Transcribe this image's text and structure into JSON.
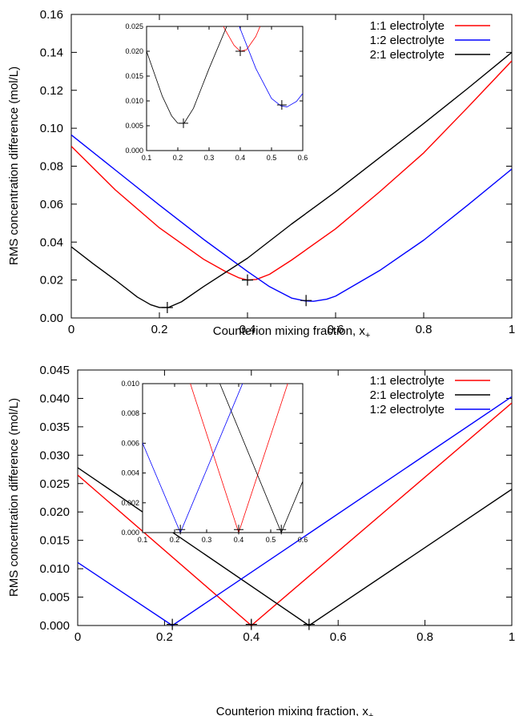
{
  "chart_data": [
    {
      "type": "line",
      "xlabel": "Counterion mixing fraction, x",
      "xlabel_subscript": "+",
      "ylabel": "RMS concentration difference (mol/L)",
      "xlim": [
        0,
        1
      ],
      "ylim": [
        0,
        0.16
      ],
      "x_ticks": [
        0,
        0.2,
        0.4,
        0.6,
        0.8,
        1
      ],
      "x_tick_labels": [
        "0",
        "0.2",
        "0.4",
        "0.6",
        "0.8",
        "1"
      ],
      "y_ticks": [
        0,
        0.02,
        0.04,
        0.06,
        0.08,
        0.1,
        0.12,
        0.14,
        0.16
      ],
      "y_tick_labels": [
        "0.00",
        "0.02",
        "0.04",
        "0.06",
        "0.08",
        "0.10",
        "0.12",
        "0.14",
        "0.16"
      ],
      "grid": false,
      "legend_position": "top-right",
      "series": [
        {
          "name": "1:1 electrolyte",
          "color": "#ff0000",
          "x": [
            0,
            0.1,
            0.2,
            0.3,
            0.35,
            0.38,
            0.4,
            0.42,
            0.45,
            0.5,
            0.6,
            0.7,
            0.8,
            0.9,
            1.0
          ],
          "y": [
            0.0905,
            0.0675,
            0.0475,
            0.031,
            0.0245,
            0.0212,
            0.02,
            0.0203,
            0.023,
            0.0305,
            0.047,
            0.0665,
            0.087,
            0.111,
            0.1355
          ]
        },
        {
          "name": "1:2 electrolyte",
          "color": "#0000ff",
          "x": [
            0,
            0.1,
            0.2,
            0.3,
            0.4,
            0.45,
            0.5,
            0.53,
            0.55,
            0.58,
            0.6,
            0.7,
            0.8,
            0.9,
            1.0
          ],
          "y": [
            0.0965,
            0.078,
            0.0595,
            0.0415,
            0.0245,
            0.0165,
            0.0105,
            0.009,
            0.0088,
            0.0099,
            0.0115,
            0.025,
            0.041,
            0.0595,
            0.0785
          ]
        },
        {
          "name": "2:1 electrolyte",
          "color": "#000000",
          "x": [
            0,
            0.05,
            0.1,
            0.15,
            0.18,
            0.2,
            0.22,
            0.25,
            0.3,
            0.4,
            0.5,
            0.6,
            0.7,
            0.8,
            0.9,
            1.0
          ],
          "y": [
            0.0375,
            0.0285,
            0.02,
            0.011,
            0.007,
            0.0055,
            0.0055,
            0.0085,
            0.0165,
            0.0315,
            0.0495,
            0.0665,
            0.0845,
            0.1025,
            0.121,
            0.14
          ]
        }
      ],
      "markers": [
        {
          "x": 0.218,
          "y": 0.0055
        },
        {
          "x": 0.4,
          "y": 0.02
        },
        {
          "x": 0.533,
          "y": 0.0092
        }
      ],
      "inset": {
        "xlim": [
          0.1,
          0.6
        ],
        "ylim": [
          0,
          0.025
        ],
        "x_ticks": [
          0.1,
          0.2,
          0.3,
          0.4,
          0.5,
          0.6
        ],
        "x_tick_labels": [
          "0.1",
          "0.2",
          "0.3",
          "0.4",
          "0.5",
          "0.6"
        ],
        "y_ticks": [
          0,
          0.005,
          0.01,
          0.015,
          0.02,
          0.025
        ],
        "y_tick_labels": [
          "0.000",
          "0.005",
          "0.010",
          "0.015",
          "0.020",
          "0.025"
        ]
      }
    },
    {
      "type": "line",
      "xlabel": "Counterion mixing fraction, x",
      "xlabel_subscript": "+",
      "ylabel": "RMS concentration difference (mol/L)",
      "xlim": [
        0,
        1
      ],
      "ylim": [
        0,
        0.045
      ],
      "x_ticks": [
        0,
        0.2,
        0.4,
        0.6,
        0.8,
        1
      ],
      "x_tick_labels": [
        "0",
        "0.2",
        "0.4",
        "0.6",
        "0.8",
        "1"
      ],
      "y_ticks": [
        0,
        0.005,
        0.01,
        0.015,
        0.02,
        0.025,
        0.03,
        0.035,
        0.04,
        0.045
      ],
      "y_tick_labels": [
        "0.000",
        "0.005",
        "0.010",
        "0.015",
        "0.020",
        "0.025",
        "0.030",
        "0.035",
        "0.040",
        "0.045"
      ],
      "grid": false,
      "legend_position": "top-right",
      "series": [
        {
          "name": "1:1 electrolyte",
          "color": "#ff0000",
          "x": [
            0,
            0.4,
            1.0
          ],
          "y": [
            0.0265,
            0.0,
            0.0392
          ]
        },
        {
          "name": "2:1 electrolyte",
          "color": "#000000",
          "x": [
            0,
            0.533,
            1.0
          ],
          "y": [
            0.0278,
            0.0,
            0.024
          ]
        },
        {
          "name": "1:2 electrolyte",
          "color": "#0000ff",
          "x": [
            0,
            0.218,
            1.0
          ],
          "y": [
            0.0111,
            0.0,
            0.0403
          ]
        }
      ],
      "markers": [
        {
          "x": 0.218,
          "y": 0.0002
        },
        {
          "x": 0.4,
          "y": 0.0002
        },
        {
          "x": 0.533,
          "y": 0.0002
        }
      ],
      "inset": {
        "xlim": [
          0.1,
          0.6
        ],
        "ylim": [
          0,
          0.01
        ],
        "x_ticks": [
          0.1,
          0.2,
          0.3,
          0.4,
          0.5,
          0.6
        ],
        "x_tick_labels": [
          "0.1",
          "0.2",
          "0.3",
          "0.4",
          "0.5",
          "0.6"
        ],
        "y_ticks": [
          0,
          0.002,
          0.004,
          0.006,
          0.008,
          0.01
        ],
        "y_tick_labels": [
          "0.000",
          "0.002",
          "0.004",
          "0.006",
          "0.008",
          "0.010"
        ]
      }
    }
  ]
}
